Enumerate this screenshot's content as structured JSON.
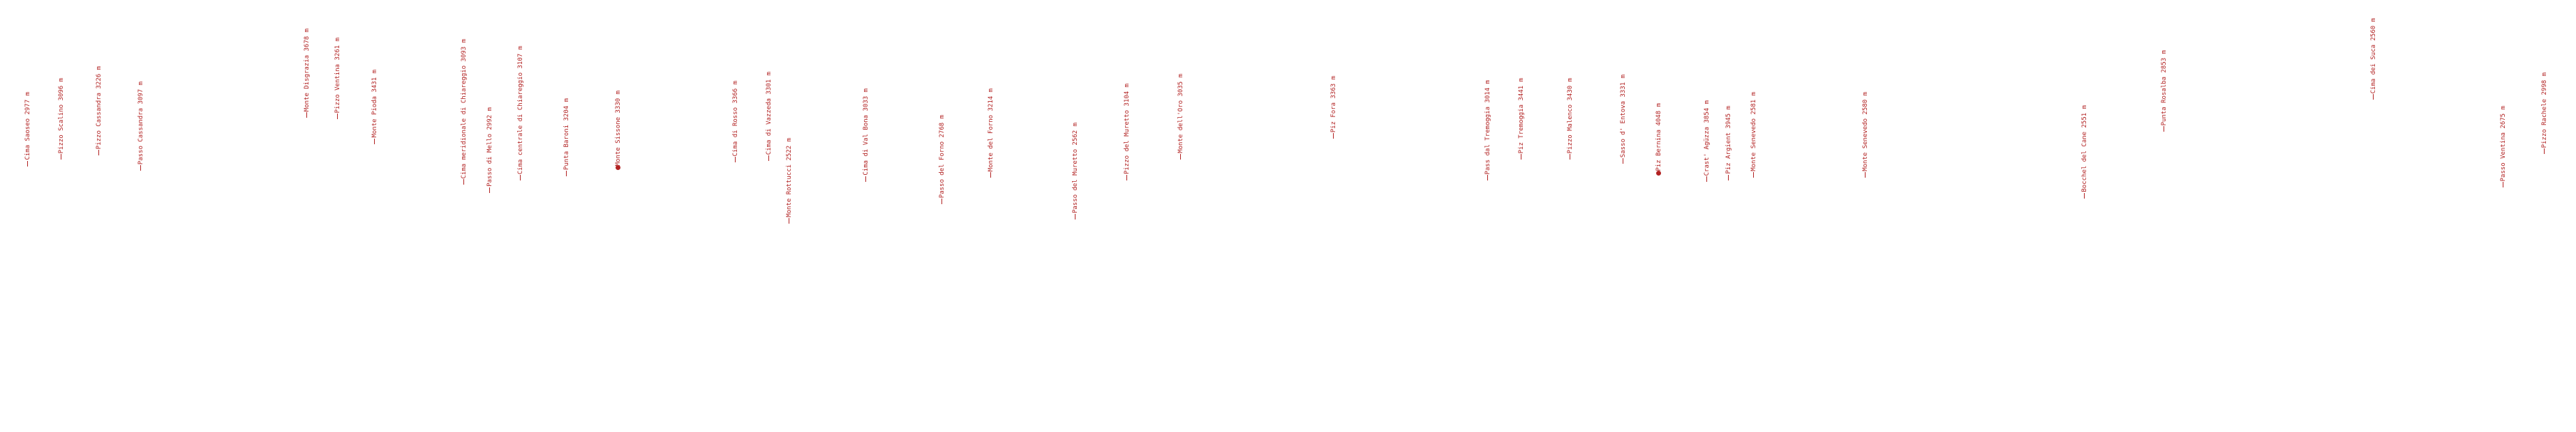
{
  "peaks": [
    {
      "name": "Cima Saoseo",
      "elev": "2977 m"
    },
    {
      "name": "Pizzo Scalino",
      "elev": "3096 m"
    },
    {
      "name": "Pizzo Cassandra",
      "elev": "3226 m"
    },
    {
      "name": "Passo Cassandra",
      "elev": "3097 m"
    },
    {
      "name": "Monte Disgrazia",
      "elev": "3678 m"
    },
    {
      "name": "Pizzo Ventina",
      "elev": "3261 m"
    },
    {
      "name": "Monte Pioda",
      "elev": "3431 m"
    },
    {
      "name": "Cima meridionale di Chiareggio",
      "elev": "3093 m"
    },
    {
      "name": "Passo di Mello",
      "elev": "2992 m"
    },
    {
      "name": "Cima centrale di Chiareggio",
      "elev": "3107 m"
    },
    {
      "name": "Punta Baroni",
      "elev": "3204 m"
    },
    {
      "name": "Monte Sissone",
      "elev": "3330 m"
    },
    {
      "name": "Cima di Rosso",
      "elev": "3366 m"
    },
    {
      "name": "Cima di Vazzeda",
      "elev": "3301 m"
    },
    {
      "name": "Monte Rottucci",
      "elev": "2522 m"
    },
    {
      "name": "Cima di Val Bona",
      "elev": "3033 m"
    },
    {
      "name": "Passo del Forno",
      "elev": "2768 m"
    },
    {
      "name": "Monte del Forno",
      "elev": "3214 m"
    },
    {
      "name": "Passo del Muretto",
      "elev": "2562 m"
    },
    {
      "name": "Pizzo del Muretto",
      "elev": "3104 m"
    },
    {
      "name": "Monte dell'Oro",
      "elev": "3035 m"
    },
    {
      "name": "Piz Fora",
      "elev": "3363 m"
    },
    {
      "name": "Pass dal Tremoggia",
      "elev": "3014 m"
    },
    {
      "name": "Piz Tremoggia",
      "elev": "3441 m"
    },
    {
      "name": "Pizzo Malenco",
      "elev": "3430 m"
    },
    {
      "name": "Sasso d' Entova",
      "elev": "3331 m"
    },
    {
      "name": "Piz Bernina",
      "elev": "4048 m"
    },
    {
      "name": "Crast' Agüzza",
      "elev": "3854 m"
    },
    {
      "name": "Piz Argient",
      "elev": "3945 m"
    },
    {
      "name": "Monte Senevedo",
      "elev": "2581 m"
    },
    {
      "name": "Monte Senevedo",
      "elev": "2580 m"
    },
    {
      "name": "Bocchel del Cane",
      "elev": "2551 m"
    },
    {
      "name": "Punta Rosalba",
      "elev": "2853 m"
    },
    {
      "name": "Cima dei Suca",
      "elev": "2560 m"
    },
    {
      "name": "Passo Ventina",
      "elev": "2675 m"
    },
    {
      "name": "Pizzo Rachele",
      "elev": "2998 m"
    }
  ]
}
